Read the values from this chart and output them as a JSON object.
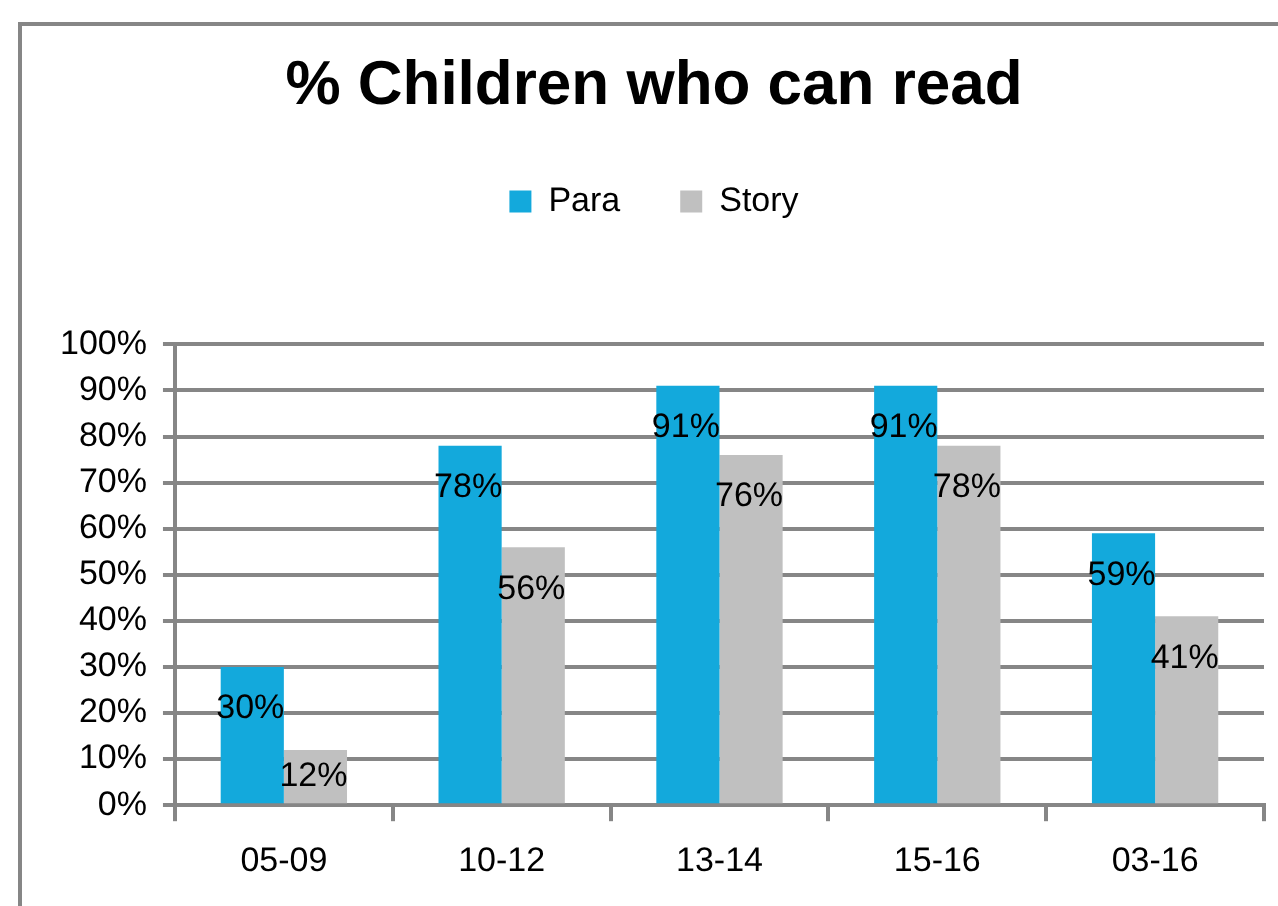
{
  "chart_data": {
    "type": "bar",
    "title": "% Children who can read",
    "categories": [
      "05-09",
      "10-12",
      "13-14",
      "15-16",
      "03-16"
    ],
    "series": [
      {
        "name": "Para",
        "color": "#13a9dc",
        "values": [
          30,
          78,
          91,
          91,
          59
        ],
        "value_labels": [
          "30%",
          "78%",
          "91%",
          "91%",
          "59%"
        ]
      },
      {
        "name": "Story",
        "color": "#c0c0c0",
        "values": [
          12,
          56,
          76,
          78,
          41
        ],
        "value_labels": [
          "12%",
          "56%",
          "76%",
          "78%",
          "41%"
        ]
      }
    ],
    "ylim": [
      0,
      100
    ],
    "yticks": [
      {
        "value": 0,
        "label": "0%"
      },
      {
        "value": 10,
        "label": "10%"
      },
      {
        "value": 20,
        "label": "20%"
      },
      {
        "value": 30,
        "label": "30%"
      },
      {
        "value": 40,
        "label": "40%"
      },
      {
        "value": 50,
        "label": "50%"
      },
      {
        "value": 60,
        "label": "60%"
      },
      {
        "value": 70,
        "label": "70%"
      },
      {
        "value": 80,
        "label": "80%"
      },
      {
        "value": 90,
        "label": "90%"
      },
      {
        "value": 100,
        "label": "100%"
      }
    ],
    "grid": "y",
    "legend": "top"
  }
}
